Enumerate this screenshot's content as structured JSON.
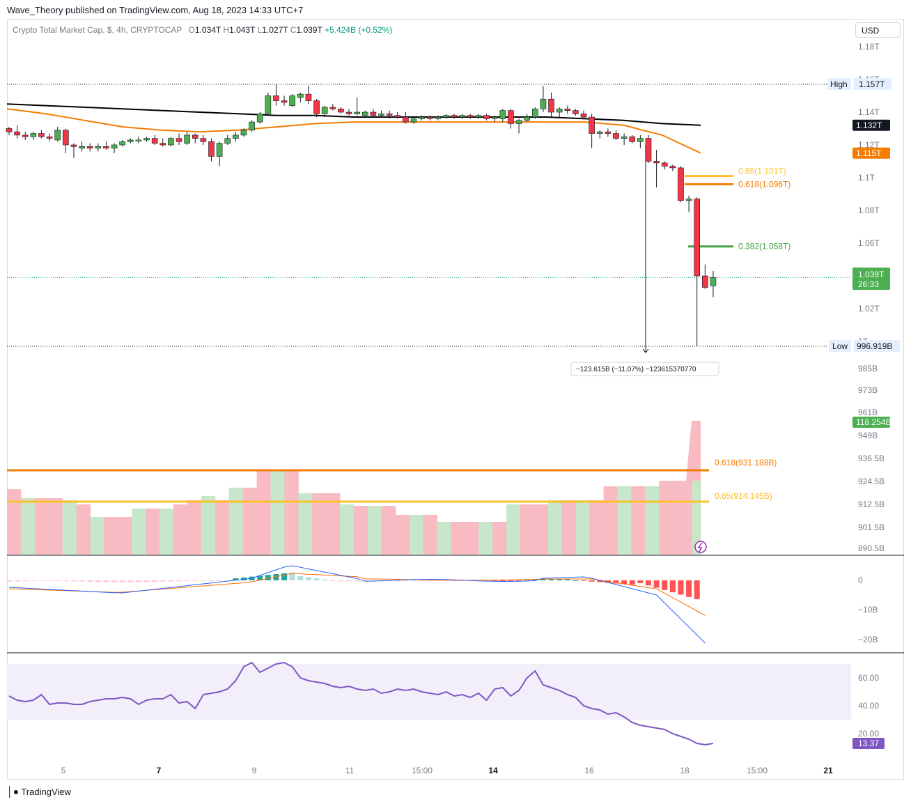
{
  "header": {
    "publisher_line": "Wave_Theory published on TradingView.com, Aug 18, 2023 14:33 UTC+7",
    "symbol": "Crypto Total Market Cap, $, 4h, CRYPTOCAP",
    "o_label": "O",
    "o_value": "1.034T",
    "h_label": "H",
    "h_value": "1.043T",
    "l_label": "L",
    "l_value": "1.027T",
    "c_label": "C",
    "c_value": "1.039T",
    "change": "+5.424B (+0.52%)",
    "currency_button": "USD"
  },
  "footer": {
    "logo_icon": "tradingview-logo-icon",
    "brand": "TradingView"
  },
  "chart_data": {
    "type": "candlestick",
    "x_axis_labels": [
      "5",
      "7",
      "9",
      "11",
      "15:00",
      "14",
      "16",
      "18",
      "15:00",
      "21"
    ],
    "x_axis_bold": [
      "7",
      "14",
      "21"
    ],
    "price_pane": {
      "y_range": [
        0.9,
        1.185
      ],
      "y_ticks": [
        {
          "value": 1.18,
          "label": "1.18T"
        },
        {
          "value": 1.16,
          "label": "1.16T"
        },
        {
          "value": 1.14,
          "label": "1.14T"
        },
        {
          "value": 1.12,
          "label": "1.12T"
        },
        {
          "value": 1.1,
          "label": "1.1T"
        },
        {
          "value": 1.08,
          "label": "1.08T"
        },
        {
          "value": 1.06,
          "label": "1.06T"
        },
        {
          "value": 1.02,
          "label": "1.02T"
        },
        {
          "value": 1.0,
          "label": "1T"
        }
      ],
      "ema_200": {
        "label": "1.132T",
        "color": "#000000",
        "values": [
          1.145,
          1.144,
          1.143,
          1.142,
          1.141,
          1.14,
          1.139,
          1.138,
          1.138,
          1.137,
          1.137,
          1.137,
          1.137,
          1.137,
          1.137,
          1.136,
          1.135,
          1.133,
          1.132
        ]
      },
      "ema_50": {
        "label": "1.115T",
        "color": "#f57c00",
        "values": [
          1.142,
          1.139,
          1.135,
          1.131,
          1.129,
          1.128,
          1.129,
          1.131,
          1.133,
          1.134,
          1.134,
          1.134,
          1.134,
          1.134,
          1.134,
          1.134,
          1.132,
          1.126,
          1.115
        ]
      },
      "fib_levels": [
        {
          "label": "0.65(1.101T)",
          "value": 1.101,
          "color": "#fbc02d"
        },
        {
          "label": "0.618(1.096T)",
          "value": 1.096,
          "color": "#f57c00"
        },
        {
          "label": "0.382(1.058T)",
          "value": 1.058,
          "color": "#43a047"
        }
      ],
      "high_label": "High",
      "high_value": "1.157T",
      "low_label": "Low",
      "low_value": "996.919B",
      "last_price": "1.039T",
      "countdown": "26:33",
      "measure_label": "−123.615B (−11.07%) −123615370770",
      "candles": [
        {
          "o": 1.13,
          "h": 1.131,
          "l": 1.126,
          "c": 1.128
        },
        {
          "o": 1.128,
          "h": 1.132,
          "l": 1.124,
          "c": 1.126
        },
        {
          "o": 1.126,
          "h": 1.128,
          "l": 1.123,
          "c": 1.125
        },
        {
          "o": 1.125,
          "h": 1.128,
          "l": 1.123,
          "c": 1.127
        },
        {
          "o": 1.127,
          "h": 1.129,
          "l": 1.124,
          "c": 1.125
        },
        {
          "o": 1.125,
          "h": 1.127,
          "l": 1.122,
          "c": 1.124
        },
        {
          "o": 1.123,
          "h": 1.131,
          "l": 1.122,
          "c": 1.129
        },
        {
          "o": 1.129,
          "h": 1.13,
          "l": 1.115,
          "c": 1.12
        },
        {
          "o": 1.12,
          "h": 1.121,
          "l": 1.112,
          "c": 1.119
        },
        {
          "o": 1.118,
          "h": 1.122,
          "l": 1.116,
          "c": 1.119
        },
        {
          "o": 1.119,
          "h": 1.121,
          "l": 1.116,
          "c": 1.118
        },
        {
          "o": 1.118,
          "h": 1.121,
          "l": 1.116,
          "c": 1.119
        },
        {
          "o": 1.119,
          "h": 1.122,
          "l": 1.117,
          "c": 1.118
        },
        {
          "o": 1.118,
          "h": 1.121,
          "l": 1.115,
          "c": 1.12
        },
        {
          "o": 1.12,
          "h": 1.123,
          "l": 1.119,
          "c": 1.122
        },
        {
          "o": 1.122,
          "h": 1.124,
          "l": 1.121,
          "c": 1.123
        },
        {
          "o": 1.123,
          "h": 1.125,
          "l": 1.121,
          "c": 1.123
        },
        {
          "o": 1.123,
          "h": 1.125,
          "l": 1.122,
          "c": 1.124
        },
        {
          "o": 1.124,
          "h": 1.126,
          "l": 1.12,
          "c": 1.121
        },
        {
          "o": 1.121,
          "h": 1.124,
          "l": 1.119,
          "c": 1.12
        },
        {
          "o": 1.12,
          "h": 1.125,
          "l": 1.119,
          "c": 1.124
        },
        {
          "o": 1.124,
          "h": 1.127,
          "l": 1.12,
          "c": 1.122
        },
        {
          "o": 1.121,
          "h": 1.128,
          "l": 1.12,
          "c": 1.126
        },
        {
          "o": 1.126,
          "h": 1.127,
          "l": 1.121,
          "c": 1.124
        },
        {
          "o": 1.124,
          "h": 1.126,
          "l": 1.12,
          "c": 1.122
        },
        {
          "o": 1.122,
          "h": 1.124,
          "l": 1.11,
          "c": 1.113
        },
        {
          "o": 1.113,
          "h": 1.122,
          "l": 1.107,
          "c": 1.121
        },
        {
          "o": 1.121,
          "h": 1.126,
          "l": 1.12,
          "c": 1.124
        },
        {
          "o": 1.124,
          "h": 1.128,
          "l": 1.122,
          "c": 1.126
        },
        {
          "o": 1.126,
          "h": 1.13,
          "l": 1.125,
          "c": 1.129
        },
        {
          "o": 1.129,
          "h": 1.135,
          "l": 1.128,
          "c": 1.134
        },
        {
          "o": 1.134,
          "h": 1.14,
          "l": 1.133,
          "c": 1.139
        },
        {
          "o": 1.139,
          "h": 1.152,
          "l": 1.138,
          "c": 1.15
        },
        {
          "o": 1.15,
          "h": 1.157,
          "l": 1.144,
          "c": 1.147
        },
        {
          "o": 1.147,
          "h": 1.15,
          "l": 1.144,
          "c": 1.146
        },
        {
          "o": 1.144,
          "h": 1.151,
          "l": 1.143,
          "c": 1.15
        },
        {
          "o": 1.149,
          "h": 1.152,
          "l": 1.146,
          "c": 1.151
        },
        {
          "o": 1.151,
          "h": 1.156,
          "l": 1.145,
          "c": 1.147
        },
        {
          "o": 1.147,
          "h": 1.148,
          "l": 1.137,
          "c": 1.139
        },
        {
          "o": 1.139,
          "h": 1.144,
          "l": 1.137,
          "c": 1.143
        },
        {
          "o": 1.143,
          "h": 1.145,
          "l": 1.141,
          "c": 1.142
        },
        {
          "o": 1.142,
          "h": 1.143,
          "l": 1.139,
          "c": 1.14
        },
        {
          "o": 1.14,
          "h": 1.142,
          "l": 1.138,
          "c": 1.139
        },
        {
          "o": 1.139,
          "h": 1.149,
          "l": 1.138,
          "c": 1.14
        },
        {
          "o": 1.138,
          "h": 1.141,
          "l": 1.137,
          "c": 1.14
        },
        {
          "o": 1.14,
          "h": 1.142,
          "l": 1.137,
          "c": 1.138
        },
        {
          "o": 1.138,
          "h": 1.141,
          "l": 1.137,
          "c": 1.139
        },
        {
          "o": 1.139,
          "h": 1.141,
          "l": 1.136,
          "c": 1.138
        },
        {
          "o": 1.138,
          "h": 1.14,
          "l": 1.136,
          "c": 1.137
        },
        {
          "o": 1.137,
          "h": 1.14,
          "l": 1.133,
          "c": 1.134
        },
        {
          "o": 1.134,
          "h": 1.137,
          "l": 1.133,
          "c": 1.136
        },
        {
          "o": 1.136,
          "h": 1.138,
          "l": 1.135,
          "c": 1.137
        },
        {
          "o": 1.137,
          "h": 1.138,
          "l": 1.135,
          "c": 1.136
        },
        {
          "o": 1.136,
          "h": 1.138,
          "l": 1.135,
          "c": 1.137
        },
        {
          "o": 1.137,
          "h": 1.139,
          "l": 1.136,
          "c": 1.138
        },
        {
          "o": 1.138,
          "h": 1.139,
          "l": 1.136,
          "c": 1.137
        },
        {
          "o": 1.137,
          "h": 1.139,
          "l": 1.136,
          "c": 1.138
        },
        {
          "o": 1.138,
          "h": 1.139,
          "l": 1.136,
          "c": 1.137
        },
        {
          "o": 1.137,
          "h": 1.139,
          "l": 1.136,
          "c": 1.138
        },
        {
          "o": 1.138,
          "h": 1.139,
          "l": 1.135,
          "c": 1.136
        },
        {
          "o": 1.136,
          "h": 1.138,
          "l": 1.134,
          "c": 1.137
        },
        {
          "o": 1.136,
          "h": 1.142,
          "l": 1.134,
          "c": 1.141
        },
        {
          "o": 1.141,
          "h": 1.142,
          "l": 1.13,
          "c": 1.133
        },
        {
          "o": 1.133,
          "h": 1.136,
          "l": 1.127,
          "c": 1.135
        },
        {
          "o": 1.135,
          "h": 1.139,
          "l": 1.134,
          "c": 1.137
        },
        {
          "o": 1.137,
          "h": 1.143,
          "l": 1.136,
          "c": 1.142
        },
        {
          "o": 1.142,
          "h": 1.156,
          "l": 1.14,
          "c": 1.148
        },
        {
          "o": 1.148,
          "h": 1.152,
          "l": 1.137,
          "c": 1.14
        },
        {
          "o": 1.14,
          "h": 1.143,
          "l": 1.137,
          "c": 1.142
        },
        {
          "o": 1.142,
          "h": 1.144,
          "l": 1.139,
          "c": 1.141
        },
        {
          "o": 1.141,
          "h": 1.142,
          "l": 1.138,
          "c": 1.139
        },
        {
          "o": 1.139,
          "h": 1.141,
          "l": 1.136,
          "c": 1.137
        },
        {
          "o": 1.137,
          "h": 1.139,
          "l": 1.118,
          "c": 1.127
        },
        {
          "o": 1.127,
          "h": 1.129,
          "l": 1.124,
          "c": 1.128
        },
        {
          "o": 1.128,
          "h": 1.13,
          "l": 1.125,
          "c": 1.127
        },
        {
          "o": 1.127,
          "h": 1.129,
          "l": 1.123,
          "c": 1.124
        },
        {
          "o": 1.124,
          "h": 1.127,
          "l": 1.12,
          "c": 1.125
        },
        {
          "o": 1.125,
          "h": 1.126,
          "l": 1.121,
          "c": 1.122
        },
        {
          "o": 1.122,
          "h": 1.126,
          "l": 1.118,
          "c": 1.124
        },
        {
          "o": 1.124,
          "h": 1.126,
          "l": 1.109,
          "c": 1.11
        },
        {
          "o": 1.11,
          "h": 1.117,
          "l": 1.094,
          "c": 1.109
        },
        {
          "o": 1.109,
          "h": 1.11,
          "l": 1.105,
          "c": 1.107
        },
        {
          "o": 1.107,
          "h": 1.108,
          "l": 1.104,
          "c": 1.106
        },
        {
          "o": 1.106,
          "h": 1.107,
          "l": 1.085,
          "c": 1.086
        },
        {
          "o": 1.086,
          "h": 1.089,
          "l": 1.079,
          "c": 1.087
        },
        {
          "o": 1.087,
          "h": 1.088,
          "l": 0.997,
          "c": 1.04
        },
        {
          "o": 1.04,
          "h": 1.047,
          "l": 1.032,
          "c": 1.033
        },
        {
          "o": 1.034,
          "h": 1.043,
          "l": 1.027,
          "c": 1.039
        }
      ]
    },
    "volume_profile_pane": {
      "y_ticks": [
        "985B",
        "973B",
        "961B",
        "949B",
        "936.5B",
        "924.5B",
        "912.5B",
        "901.5B",
        "890.5B"
      ],
      "fib_levels": [
        {
          "label": "0.618(931.188B)",
          "color": "#f57c00"
        },
        {
          "label": "0.65(914.145B)",
          "color": "#fbc02d"
        }
      ],
      "last_value_label": "118.254B",
      "indicator_icon": "lightning-icon",
      "bar_colors": {
        "up": "#c8e6c9",
        "down": "#f8bbc4"
      }
    },
    "macd_pane": {
      "y_ticks": [
        "0",
        "−10B",
        "−20B"
      ],
      "colors": {
        "macd": "#2962ff",
        "signal": "#ff6d00",
        "hist_pos": "#26a69a",
        "hist_neg": "#ff5252"
      }
    },
    "rsi_pane": {
      "y_ticks": [
        "60.00",
        "40.00",
        "20.00"
      ],
      "band": [
        30,
        70
      ],
      "last_value_label": "13.37",
      "color": "#7e57c2",
      "values": [
        47,
        44,
        43,
        44,
        48,
        41,
        42,
        42,
        41,
        41,
        43,
        44,
        45,
        45,
        46,
        45,
        41,
        44,
        45,
        45,
        48,
        42,
        43,
        38,
        48,
        49,
        50,
        52,
        58,
        68,
        71,
        64,
        67,
        70,
        71,
        68,
        60,
        58,
        57,
        56,
        54,
        53,
        54,
        52,
        51,
        52,
        49,
        50,
        52,
        51,
        52,
        50,
        49,
        48,
        50,
        47,
        48,
        46,
        49,
        44,
        52,
        53,
        47,
        51,
        60,
        65,
        55,
        53,
        51,
        48,
        46,
        40,
        38,
        37,
        34,
        35,
        32,
        28,
        26,
        25,
        24,
        23,
        20,
        18,
        16,
        13,
        12,
        13
      ]
    }
  }
}
